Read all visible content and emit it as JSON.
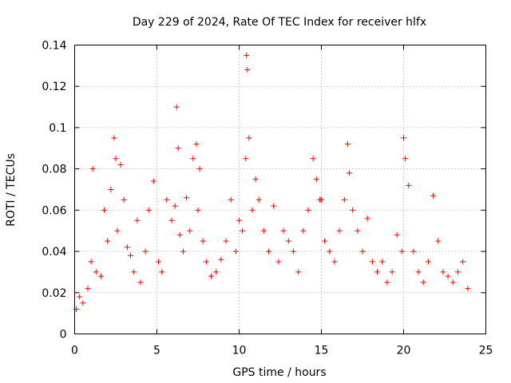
{
  "chart_data": {
    "type": "scatter",
    "title": "Day 229 of 2024, Rate Of TEC Index for receiver hlfx",
    "xlabel": "GPS time / hours",
    "ylabel": "ROTI / TECUs",
    "xlim": [
      0,
      25
    ],
    "ylim": [
      0,
      0.14
    ],
    "xticks": [
      0,
      5,
      10,
      15,
      20,
      25
    ],
    "xtick_labels": [
      "0",
      "5",
      "10",
      "15",
      "20",
      "25"
    ],
    "yticks": [
      0,
      0.02,
      0.04,
      0.06,
      0.08,
      0.1,
      0.12,
      0.14
    ],
    "ytick_labels": [
      "0",
      "0.02",
      "0.04",
      "0.06",
      "0.08",
      "0.1",
      "0.12",
      "0.14"
    ],
    "grid": true,
    "marker": "plus",
    "color": "#ff0000",
    "series": [
      {
        "name": "ROTI",
        "x": [
          0.1,
          0.3,
          0.5,
          0.8,
          1.0,
          1.1,
          1.3,
          1.6,
          1.8,
          2.0,
          2.2,
          2.4,
          2.5,
          2.6,
          2.8,
          3.0,
          3.2,
          3.4,
          3.6,
          3.8,
          4.0,
          4.3,
          4.5,
          4.8,
          5.1,
          5.3,
          5.6,
          5.9,
          6.1,
          6.2,
          6.3,
          6.4,
          6.6,
          6.8,
          7.0,
          7.2,
          7.4,
          7.5,
          7.6,
          7.8,
          8.0,
          8.3,
          8.6,
          8.9,
          9.2,
          9.5,
          9.8,
          10.0,
          10.2,
          10.4,
          10.45,
          10.5,
          10.6,
          10.8,
          11.0,
          11.2,
          11.5,
          11.8,
          12.1,
          12.4,
          12.7,
          13.0,
          13.3,
          13.6,
          13.9,
          14.2,
          14.5,
          14.7,
          14.9,
          15.0,
          15.2,
          15.5,
          15.8,
          16.1,
          16.4,
          16.6,
          16.7,
          16.9,
          17.2,
          17.5,
          17.8,
          18.1,
          18.4,
          18.7,
          19.0,
          19.3,
          19.6,
          19.9,
          20.0,
          20.1,
          20.3,
          20.6,
          20.9,
          21.2,
          21.5,
          21.8,
          22.1,
          22.4,
          22.7,
          23.0,
          23.3,
          23.6,
          23.9
        ],
        "y": [
          0.012,
          0.018,
          0.015,
          0.022,
          0.035,
          0.08,
          0.03,
          0.028,
          0.06,
          0.045,
          0.07,
          0.095,
          0.085,
          0.05,
          0.082,
          0.065,
          0.042,
          0.038,
          0.03,
          0.055,
          0.025,
          0.04,
          0.06,
          0.074,
          0.035,
          0.03,
          0.065,
          0.055,
          0.062,
          0.11,
          0.09,
          0.048,
          0.04,
          0.066,
          0.05,
          0.085,
          0.092,
          0.06,
          0.08,
          0.045,
          0.035,
          0.028,
          0.03,
          0.036,
          0.045,
          0.065,
          0.04,
          0.055,
          0.05,
          0.085,
          0.135,
          0.128,
          0.095,
          0.06,
          0.075,
          0.065,
          0.05,
          0.04,
          0.062,
          0.035,
          0.05,
          0.045,
          0.04,
          0.03,
          0.05,
          0.06,
          0.085,
          0.075,
          0.065,
          0.065,
          0.045,
          0.04,
          0.035,
          0.05,
          0.065,
          0.092,
          0.078,
          0.06,
          0.05,
          0.04,
          0.056,
          0.035,
          0.03,
          0.035,
          0.025,
          0.03,
          0.048,
          0.04,
          0.095,
          0.085,
          0.072,
          0.04,
          0.03,
          0.025,
          0.035,
          0.067,
          0.045,
          0.03,
          0.028,
          0.025,
          0.03,
          0.035,
          0.022
        ]
      }
    ]
  }
}
